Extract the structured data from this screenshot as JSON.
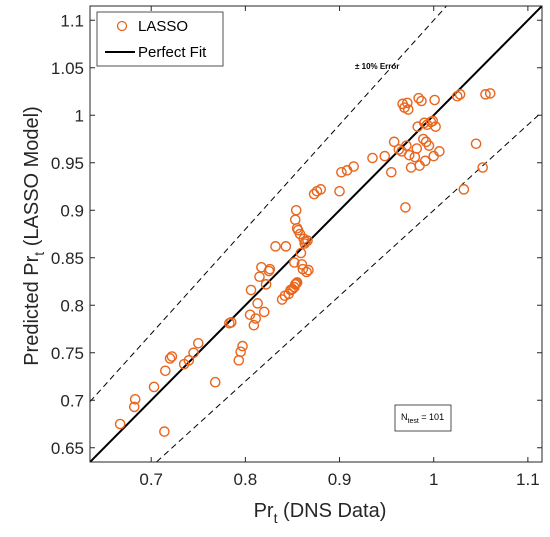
{
  "chart_data": {
    "type": "scatter",
    "xlabel": {
      "main": "Pr",
      "sub": "t",
      "rest": " (DNS Data)"
    },
    "ylabel": {
      "main": "Predicted Pr",
      "sub": "t",
      "rest": " (LASSO Model)"
    },
    "xlim": [
      0.635,
      1.115
    ],
    "ylim": [
      0.635,
      1.115
    ],
    "xticks": [
      0.7,
      0.8,
      0.9,
      1,
      1.1
    ],
    "xtick_labels": [
      "0.7",
      "0.8",
      "0.9",
      "1",
      "1.1"
    ],
    "yticks": [
      0.65,
      0.7,
      0.75,
      0.8,
      0.85,
      0.9,
      0.95,
      1,
      1.05,
      1.1
    ],
    "ytick_labels": [
      "0.65",
      "0.7",
      "0.75",
      "0.8",
      "0.85",
      "0.9",
      "0.95",
      "1",
      "1.05",
      "1.1"
    ],
    "grid": false,
    "legend": {
      "placement": "top-left",
      "entries": [
        "LASSO",
        "Perfect Fit"
      ]
    },
    "error_band_label": "± 10% Error",
    "error_band": 0.1,
    "test_count": {
      "main": "N",
      "sub": "test",
      "rest": " = 101"
    },
    "colors": {
      "lasso": "#e8661e",
      "fit": "#000000",
      "band": "#000000"
    },
    "series": [
      {
        "name": "LASSO",
        "points": [
          [
            0.667,
            0.675
          ],
          [
            0.682,
            0.693
          ],
          [
            0.683,
            0.701
          ],
          [
            0.703,
            0.714
          ],
          [
            0.714,
            0.667
          ],
          [
            0.715,
            0.731
          ],
          [
            0.72,
            0.744
          ],
          [
            0.722,
            0.746
          ],
          [
            0.735,
            0.738
          ],
          [
            0.74,
            0.742
          ],
          [
            0.745,
            0.75
          ],
          [
            0.75,
            0.76
          ],
          [
            0.768,
            0.719
          ],
          [
            0.783,
            0.781
          ],
          [
            0.785,
            0.782
          ],
          [
            0.793,
            0.742
          ],
          [
            0.795,
            0.751
          ],
          [
            0.797,
            0.757
          ],
          [
            0.805,
            0.79
          ],
          [
            0.806,
            0.816
          ],
          [
            0.809,
            0.779
          ],
          [
            0.811,
            0.786
          ],
          [
            0.813,
            0.802
          ],
          [
            0.815,
            0.83
          ],
          [
            0.817,
            0.84
          ],
          [
            0.82,
            0.793
          ],
          [
            0.822,
            0.822
          ],
          [
            0.825,
            0.836
          ],
          [
            0.826,
            0.838
          ],
          [
            0.832,
            0.862
          ],
          [
            0.839,
            0.806
          ],
          [
            0.842,
            0.81
          ],
          [
            0.843,
            0.862
          ],
          [
            0.846,
            0.812
          ],
          [
            0.848,
            0.816
          ],
          [
            0.85,
            0.817
          ],
          [
            0.852,
            0.819
          ],
          [
            0.853,
            0.822
          ],
          [
            0.854,
            0.823
          ],
          [
            0.855,
            0.824
          ],
          [
            0.852,
            0.845
          ],
          [
            0.853,
            0.89
          ],
          [
            0.854,
            0.9
          ],
          [
            0.855,
            0.881
          ],
          [
            0.856,
            0.879
          ],
          [
            0.858,
            0.875
          ],
          [
            0.859,
            0.855
          ],
          [
            0.86,
            0.843
          ],
          [
            0.861,
            0.838
          ],
          [
            0.862,
            0.87
          ],
          [
            0.863,
            0.865
          ],
          [
            0.864,
            0.867
          ],
          [
            0.865,
            0.835
          ],
          [
            0.866,
            0.868
          ],
          [
            0.867,
            0.837
          ],
          [
            0.873,
            0.917
          ],
          [
            0.876,
            0.92
          ],
          [
            0.88,
            0.922
          ],
          [
            0.902,
            0.94
          ],
          [
            0.908,
            0.942
          ],
          [
            0.915,
            0.946
          ],
          [
            0.948,
            0.957
          ],
          [
            0.955,
            0.94
          ],
          [
            0.963,
            0.964
          ],
          [
            0.966,
            0.962
          ],
          [
            0.967,
            1.012
          ],
          [
            0.969,
            1.008
          ],
          [
            0.97,
            0.903
          ],
          [
            0.971,
            0.968
          ],
          [
            0.972,
            1.013
          ],
          [
            0.973,
            1.006
          ],
          [
            0.974,
            0.958
          ],
          [
            0.976,
            0.945
          ],
          [
            0.98,
            0.956
          ],
          [
            0.982,
            0.965
          ],
          [
            0.983,
            0.988
          ],
          [
            0.984,
            1.018
          ],
          [
            0.985,
            0.947
          ],
          [
            0.987,
            1.015
          ],
          [
            0.989,
            0.975
          ],
          [
            0.99,
            0.992
          ],
          [
            0.991,
            0.952
          ],
          [
            0.992,
            0.972
          ],
          [
            0.993,
            0.99
          ],
          [
            0.995,
            0.968
          ],
          [
            0.997,
            0.993
          ],
          [
            0.999,
            0.994
          ],
          [
            1.0,
            0.957
          ],
          [
            1.001,
            1.016
          ],
          [
            1.002,
            0.988
          ],
          [
            1.006,
            0.962
          ],
          [
            1.025,
            1.02
          ],
          [
            1.028,
            1.022
          ],
          [
            1.032,
            0.922
          ],
          [
            1.045,
            0.97
          ],
          [
            1.052,
            0.945
          ],
          [
            1.055,
            1.022
          ],
          [
            1.06,
            1.023
          ],
          [
            0.9,
            0.92
          ],
          [
            0.935,
            0.955
          ],
          [
            0.958,
            0.972
          ]
        ]
      }
    ]
  }
}
